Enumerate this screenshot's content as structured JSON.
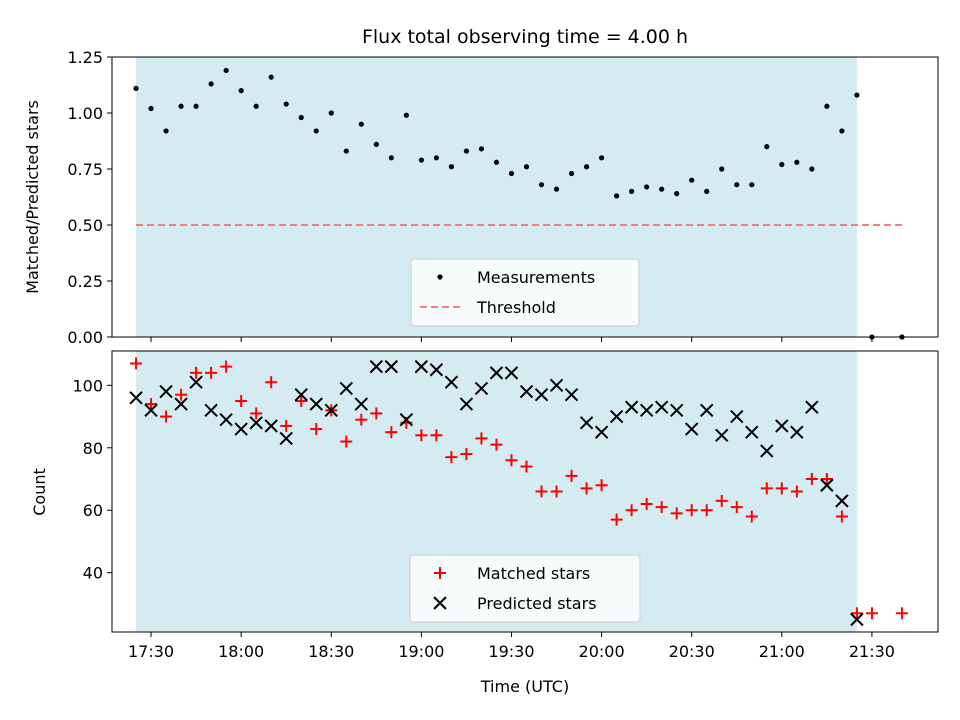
{
  "chart_data": [
    {
      "type": "scatter",
      "title": "Flux total observing time = 4.00 h",
      "xlabel": "",
      "ylabel": "Matched/Predicted stars",
      "xlim": [
        "17:17",
        "21:52"
      ],
      "ylim": [
        0,
        1.25
      ],
      "yticks": [
        "0.00",
        "0.25",
        "0.50",
        "0.75",
        "1.00",
        "1.25"
      ],
      "shaded_region": [
        "17:25",
        "21:25"
      ],
      "shaded_color": "#d4ebf1",
      "legend": {
        "location": "lower-center",
        "entries": [
          "Measurements",
          "Threshold"
        ]
      },
      "series": [
        {
          "name": "Measurements",
          "color": "#000000",
          "marker": "dot",
          "x": [
            "17:25",
            "17:30",
            "17:35",
            "17:40",
            "17:45",
            "17:50",
            "17:55",
            "18:00",
            "18:05",
            "18:10",
            "18:15",
            "18:20",
            "18:25",
            "18:30",
            "18:35",
            "18:40",
            "18:45",
            "18:50",
            "18:55",
            "19:00",
            "19:05",
            "19:10",
            "19:15",
            "19:20",
            "19:25",
            "19:30",
            "19:35",
            "19:40",
            "19:45",
            "19:50",
            "19:55",
            "20:00",
            "20:05",
            "20:10",
            "20:15",
            "20:20",
            "20:25",
            "20:30",
            "20:35",
            "20:40",
            "20:45",
            "20:50",
            "20:55",
            "21:00",
            "21:05",
            "21:10",
            "21:15",
            "21:20",
            "21:25",
            "21:30",
            "21:40"
          ],
          "y": [
            1.11,
            1.02,
            0.92,
            1.03,
            1.03,
            1.13,
            1.19,
            1.1,
            1.03,
            1.16,
            1.04,
            0.98,
            0.92,
            1.0,
            0.83,
            0.95,
            0.86,
            0.8,
            0.99,
            0.79,
            0.8,
            0.76,
            0.83,
            0.84,
            0.78,
            0.73,
            0.76,
            0.68,
            0.66,
            0.73,
            0.76,
            0.8,
            0.63,
            0.65,
            0.67,
            0.66,
            0.64,
            0.7,
            0.65,
            0.75,
            0.68,
            0.68,
            0.85,
            0.77,
            0.78,
            0.75,
            1.03,
            0.92,
            1.08,
            0.0,
            0.0
          ]
        },
        {
          "name": "Threshold",
          "color": "#f08080",
          "style": "dashed",
          "x": [
            "17:25",
            "21:40"
          ],
          "y": [
            0.5,
            0.5
          ]
        }
      ]
    },
    {
      "type": "scatter",
      "title": "",
      "xlabel": "Time (UTC)",
      "ylabel": "Count",
      "xlim": [
        "17:17",
        "21:52"
      ],
      "ylim": [
        21,
        111
      ],
      "yticks": [
        "40",
        "60",
        "80",
        "100"
      ],
      "xticks": [
        "17:30",
        "18:00",
        "18:30",
        "19:00",
        "19:30",
        "20:00",
        "20:30",
        "21:00",
        "21:30"
      ],
      "shaded_region": [
        "17:25",
        "21:25"
      ],
      "shaded_color": "#d4ebf1",
      "legend": {
        "location": "lower-center",
        "entries": [
          "Matched stars",
          "Predicted stars"
        ]
      },
      "series": [
        {
          "name": "Matched stars",
          "color": "#ff0000",
          "marker": "plus",
          "x": [
            "17:25",
            "17:30",
            "17:35",
            "17:40",
            "17:45",
            "17:50",
            "17:55",
            "18:00",
            "18:05",
            "18:10",
            "18:15",
            "18:20",
            "18:25",
            "18:30",
            "18:35",
            "18:40",
            "18:45",
            "18:50",
            "18:55",
            "19:00",
            "19:05",
            "19:10",
            "19:15",
            "19:20",
            "19:25",
            "19:30",
            "19:35",
            "19:40",
            "19:45",
            "19:50",
            "19:55",
            "20:00",
            "20:05",
            "20:10",
            "20:15",
            "20:20",
            "20:25",
            "20:30",
            "20:35",
            "20:40",
            "20:45",
            "20:50",
            "20:55",
            "21:00",
            "21:05",
            "21:10",
            "21:15",
            "21:20",
            "21:25",
            "21:30",
            "21:40"
          ],
          "y": [
            107,
            94,
            90,
            97,
            104,
            104,
            106,
            95,
            91,
            101,
            87,
            95,
            86,
            92,
            82,
            89,
            91,
            85,
            88,
            84,
            84,
            77,
            78,
            83,
            81,
            76,
            74,
            66,
            66,
            71,
            67,
            68,
            57,
            60,
            62,
            61,
            59,
            60,
            60,
            63,
            61,
            58,
            67,
            67,
            66,
            70,
            70,
            58,
            27,
            27,
            27
          ]
        },
        {
          "name": "Predicted stars",
          "color": "#000000",
          "marker": "x",
          "x": [
            "17:25",
            "17:30",
            "17:35",
            "17:40",
            "17:45",
            "17:50",
            "17:55",
            "18:00",
            "18:05",
            "18:10",
            "18:15",
            "18:20",
            "18:25",
            "18:30",
            "18:35",
            "18:40",
            "18:45",
            "18:50",
            "18:55",
            "19:00",
            "19:05",
            "19:10",
            "19:15",
            "19:20",
            "19:25",
            "19:30",
            "19:35",
            "19:40",
            "19:45",
            "19:50",
            "19:55",
            "20:00",
            "20:05",
            "20:10",
            "20:15",
            "20:20",
            "20:25",
            "20:30",
            "20:35",
            "20:40",
            "20:45",
            "20:50",
            "20:55",
            "21:00",
            "21:05",
            "21:10",
            "21:15",
            "21:20",
            "21:25"
          ],
          "y": [
            96,
            92,
            98,
            94,
            101,
            92,
            89,
            86,
            88,
            87,
            83,
            97,
            94,
            92,
            99,
            94,
            106,
            106,
            89,
            106,
            105,
            101,
            94,
            99,
            104,
            104,
            98,
            97,
            100,
            97,
            88,
            85,
            90,
            93,
            92,
            93,
            92,
            86,
            92,
            84,
            90,
            85,
            79,
            87,
            85,
            93,
            68,
            63,
            25
          ]
        }
      ]
    }
  ]
}
